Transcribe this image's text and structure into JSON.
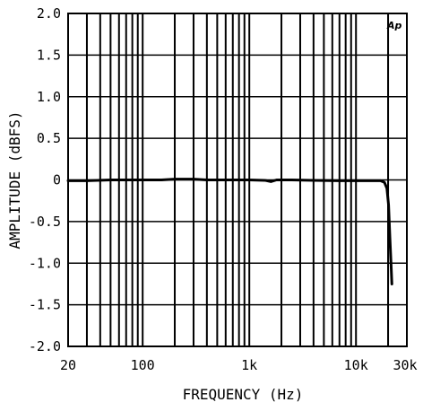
{
  "chart_data": {
    "type": "line",
    "title": "",
    "xlabel": "FREQUENCY (Hz)",
    "ylabel": "AMPLITUDE (dBFS)",
    "xscale": "log",
    "xlim": [
      20,
      30000
    ],
    "ylim": [
      -2.0,
      2.0
    ],
    "x_tick_labels": [
      {
        "value": 20,
        "label": "20"
      },
      {
        "value": 100,
        "label": "100"
      },
      {
        "value": 1000,
        "label": "1k"
      },
      {
        "value": 10000,
        "label": "10k"
      },
      {
        "value": 30000,
        "label": "30k"
      }
    ],
    "y_tick_labels": [
      {
        "value": 2.0,
        "label": "2.0"
      },
      {
        "value": 1.5,
        "label": "1.5"
      },
      {
        "value": 1.0,
        "label": "1.0"
      },
      {
        "value": 0.5,
        "label": "0.5"
      },
      {
        "value": 0,
        "label": "0"
      },
      {
        "value": -0.5,
        "label": "-0.5"
      },
      {
        "value": -1.0,
        "label": "-1.0"
      },
      {
        "value": -1.5,
        "label": "-1.5"
      },
      {
        "value": -2.0,
        "label": "-2.0"
      }
    ],
    "grid": true,
    "logo": "Ap",
    "series": [
      {
        "color": "#000000",
        "points": [
          [
            20,
            -0.01
          ],
          [
            30,
            -0.01
          ],
          [
            50,
            0.0
          ],
          [
            100,
            0.0
          ],
          [
            150,
            0.0
          ],
          [
            200,
            0.01
          ],
          [
            300,
            0.01
          ],
          [
            400,
            0.0
          ],
          [
            600,
            0.0
          ],
          [
            1000,
            0.0
          ],
          [
            1400,
            -0.005
          ],
          [
            1600,
            -0.02
          ],
          [
            1800,
            0.0
          ],
          [
            2500,
            0.0
          ],
          [
            4000,
            -0.005
          ],
          [
            7000,
            -0.01
          ],
          [
            10000,
            -0.01
          ],
          [
            14000,
            -0.01
          ],
          [
            17000,
            -0.01
          ],
          [
            18500,
            -0.03
          ],
          [
            19500,
            -0.1
          ],
          [
            20200,
            -0.3
          ],
          [
            20800,
            -0.7
          ],
          [
            21300,
            -1.0
          ],
          [
            21700,
            -1.25
          ]
        ]
      }
    ]
  }
}
